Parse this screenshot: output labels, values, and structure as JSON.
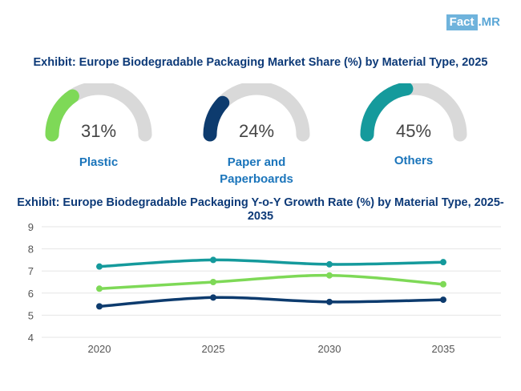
{
  "brand": {
    "fact": "Fact",
    "mr": ".MR"
  },
  "exhibit1": {
    "title": "Exhibit: Europe Biodegradable Packaging Market Share (%) by Material Type, 2025",
    "gauges": [
      {
        "label": "Plastic",
        "value_text": "31%",
        "value": 31,
        "color": "#7ed957"
      },
      {
        "label": "Paper and Paperboards",
        "value_text": "24%",
        "value": 24,
        "color": "#0d3b6e"
      },
      {
        "label": "Others",
        "value_text": "45%",
        "value": 45,
        "color": "#159a9c"
      }
    ],
    "track_color": "#d9d9d9"
  },
  "exhibit2": {
    "title": "Exhibit: Europe Biodegradable Packaging Y-o-Y Growth Rate (%) by Material Type, 2025-2035"
  },
  "chart_data": {
    "type": "line",
    "title": "Exhibit: Europe Biodegradable Packaging Y-o-Y Growth Rate (%) by Material Type, 2025-2035",
    "categories": [
      "2020",
      "2025",
      "2030",
      "2035"
    ],
    "series": [
      {
        "name": "Others",
        "color": "#159a9c",
        "values": [
          7.2,
          7.5,
          7.3,
          7.4
        ]
      },
      {
        "name": "Plastic",
        "color": "#7ed957",
        "values": [
          6.2,
          6.5,
          6.8,
          6.4
        ]
      },
      {
        "name": "Paper and Paperboards",
        "color": "#0d3b6e",
        "values": [
          5.4,
          5.8,
          5.6,
          5.7
        ]
      }
    ],
    "ylim": [
      4,
      9
    ],
    "yticks": [
      "4",
      "5",
      "6",
      "7",
      "8",
      "9"
    ],
    "xlabel": "",
    "ylabel": "",
    "grid": true
  }
}
